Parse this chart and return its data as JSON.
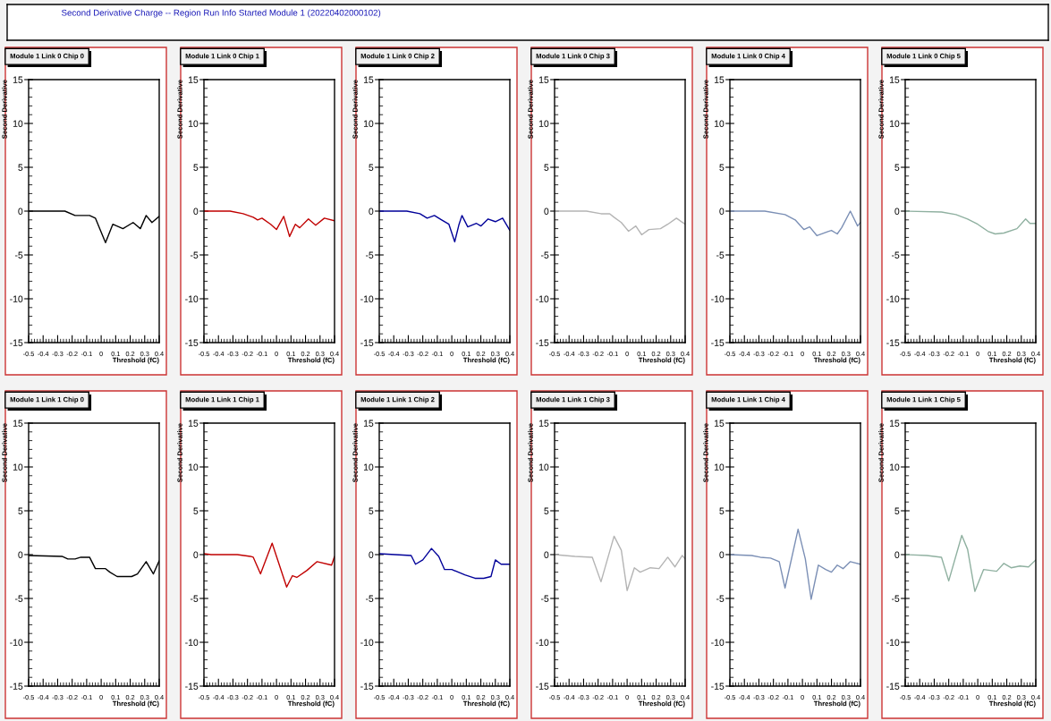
{
  "chart_data": [
    {
      "type": "other",
      "title": "Second Derivative Charge -- Region Run Info Started Module 1 (20220402000102)"
    },
    {
      "type": "line",
      "title": "Module 1 Link 0 Chip 0",
      "xlabel": "Threshold (fC)",
      "ylabel": "Second Derivative",
      "xlim": [
        -0.5,
        0.4
      ],
      "ylim": [
        -15,
        15
      ],
      "xticks": [
        -0.5,
        -0.4,
        -0.3,
        -0.2,
        -0.1,
        0,
        0.1,
        0.2,
        0.3,
        0.4
      ],
      "yticks": [
        -15,
        -10,
        -5,
        0,
        5,
        10,
        15
      ],
      "x": [
        -0.5,
        -0.35,
        -0.25,
        -0.18,
        -0.08,
        -0.04,
        0.03,
        0.08,
        0.15,
        0.22,
        0.27,
        0.31,
        0.35,
        0.4
      ],
      "series": [
        {
          "color": "#000000",
          "values": [
            0,
            0,
            0,
            -0.5,
            -0.5,
            -0.8,
            -3.6,
            -1.5,
            -2.0,
            -1.3,
            -2.0,
            -0.5,
            -1.3,
            -0.6
          ]
        }
      ]
    },
    {
      "type": "line",
      "title": "Module 1 Link 0 Chip 1",
      "xlabel": "Threshold (fC)",
      "ylabel": "Second Derivative",
      "xlim": [
        -0.5,
        0.4
      ],
      "ylim": [
        -15,
        15
      ],
      "xticks": [
        -0.5,
        -0.4,
        -0.3,
        -0.2,
        -0.1,
        0,
        0.1,
        0.2,
        0.3,
        0.4
      ],
      "yticks": [
        -15,
        -10,
        -5,
        0,
        5,
        10,
        15
      ],
      "x": [
        -0.5,
        -0.32,
        -0.23,
        -0.16,
        -0.13,
        -0.1,
        -0.04,
        0.0,
        0.05,
        0.09,
        0.13,
        0.16,
        0.22,
        0.27,
        0.33,
        0.4
      ],
      "series": [
        {
          "color": "#c00000",
          "values": [
            0,
            0,
            -0.3,
            -0.7,
            -1.0,
            -0.8,
            -1.5,
            -2.1,
            -0.6,
            -2.9,
            -1.5,
            -1.9,
            -0.9,
            -1.6,
            -0.8,
            -1.1
          ]
        }
      ]
    },
    {
      "type": "line",
      "title": "Module 1 Link 0 Chip 2",
      "xlabel": "Threshold (fC)",
      "ylabel": "Second Derivative",
      "xlim": [
        -0.5,
        0.4
      ],
      "ylim": [
        -15,
        15
      ],
      "xticks": [
        -0.5,
        -0.4,
        -0.3,
        -0.2,
        -0.1,
        0,
        0.1,
        0.2,
        0.3,
        0.4
      ],
      "yticks": [
        -15,
        -10,
        -5,
        0,
        5,
        10,
        15
      ],
      "x": [
        -0.5,
        -0.31,
        -0.22,
        -0.17,
        -0.12,
        -0.07,
        -0.02,
        0.02,
        0.05,
        0.07,
        0.11,
        0.17,
        0.2,
        0.25,
        0.3,
        0.35,
        0.4
      ],
      "series": [
        {
          "color": "#000099",
          "values": [
            0,
            0,
            -0.3,
            -0.8,
            -0.5,
            -1.0,
            -1.5,
            -3.5,
            -1.5,
            -0.5,
            -1.8,
            -1.4,
            -1.7,
            -0.9,
            -1.2,
            -0.8,
            -2.2
          ]
        }
      ]
    },
    {
      "type": "line",
      "title": "Module 1 Link 0 Chip 3",
      "xlabel": "Threshold (fC)",
      "ylabel": "Second Derivative",
      "xlim": [
        -0.5,
        0.4
      ],
      "ylim": [
        -15,
        15
      ],
      "xticks": [
        -0.5,
        -0.4,
        -0.3,
        -0.2,
        -0.1,
        0,
        0.1,
        0.2,
        0.3,
        0.4
      ],
      "yticks": [
        -15,
        -10,
        -5,
        0,
        5,
        10,
        15
      ],
      "x": [
        -0.5,
        -0.28,
        -0.18,
        -0.12,
        -0.09,
        -0.04,
        0.01,
        0.06,
        0.1,
        0.15,
        0.23,
        0.28,
        0.34,
        0.4
      ],
      "series": [
        {
          "color": "#b4b4b4",
          "values": [
            0,
            0,
            -0.3,
            -0.3,
            -0.7,
            -1.3,
            -2.3,
            -1.7,
            -2.7,
            -2.1,
            -2.0,
            -1.5,
            -0.8,
            -1.5
          ]
        }
      ]
    },
    {
      "type": "line",
      "title": "Module 1 Link 0 Chip 4",
      "xlabel": "Threshold (fC)",
      "ylabel": "Second Derivative",
      "xlim": [
        -0.5,
        0.4
      ],
      "ylim": [
        -15,
        15
      ],
      "xticks": [
        -0.5,
        -0.4,
        -0.3,
        -0.2,
        -0.1,
        0,
        0.1,
        0.2,
        0.3,
        0.4
      ],
      "yticks": [
        -15,
        -10,
        -5,
        0,
        5,
        10,
        15
      ],
      "x": [
        -0.5,
        -0.26,
        -0.12,
        -0.05,
        0.01,
        0.05,
        0.1,
        0.18,
        0.2,
        0.24,
        0.27,
        0.33,
        0.38,
        0.4
      ],
      "series": [
        {
          "color": "#7b8fb5",
          "values": [
            0,
            0,
            -0.4,
            -1.0,
            -2.1,
            -1.8,
            -2.8,
            -2.3,
            -2.2,
            -2.6,
            -1.9,
            0.0,
            -1.7,
            -1.3
          ]
        }
      ]
    },
    {
      "type": "line",
      "title": "Module 1 Link 0 Chip 5",
      "xlabel": "Threshold (fC)",
      "ylabel": "Second Derivative",
      "xlim": [
        -0.5,
        0.4
      ],
      "ylim": [
        -15,
        15
      ],
      "xticks": [
        -0.5,
        -0.4,
        -0.3,
        -0.2,
        -0.1,
        0,
        0.1,
        0.2,
        0.3,
        0.4
      ],
      "yticks": [
        -15,
        -10,
        -5,
        0,
        5,
        10,
        15
      ],
      "x": [
        -0.5,
        -0.25,
        -0.15,
        -0.07,
        0.0,
        0.07,
        0.12,
        0.18,
        0.27,
        0.33,
        0.36,
        0.4
      ],
      "series": [
        {
          "color": "#8fb0a0",
          "values": [
            0,
            -0.1,
            -0.4,
            -0.9,
            -1.5,
            -2.3,
            -2.6,
            -2.5,
            -2.0,
            -0.9,
            -1.4,
            -1.4
          ]
        }
      ]
    },
    {
      "type": "line",
      "title": "Module 1 Link 1 Chip 0",
      "xlabel": "Threshold (fC)",
      "ylabel": "Second Derivative",
      "xlim": [
        -0.5,
        0.4
      ],
      "ylim": [
        -15,
        15
      ],
      "xticks": [
        -0.5,
        -0.4,
        -0.3,
        -0.2,
        -0.1,
        0,
        0.1,
        0.2,
        0.3,
        0.4
      ],
      "yticks": [
        -15,
        -10,
        -5,
        0,
        5,
        10,
        15
      ],
      "x": [
        -0.5,
        -0.27,
        -0.23,
        -0.18,
        -0.14,
        -0.08,
        -0.04,
        0.03,
        0.06,
        0.11,
        0.21,
        0.25,
        0.31,
        0.36,
        0.4
      ],
      "series": [
        {
          "color": "#000000",
          "values": [
            -0.1,
            -0.2,
            -0.5,
            -0.5,
            -0.3,
            -0.3,
            -1.6,
            -1.6,
            -2.0,
            -2.5,
            -2.5,
            -2.2,
            -0.8,
            -2.2,
            -0.7
          ]
        }
      ]
    },
    {
      "type": "line",
      "title": "Module 1 Link 1 Chip 1",
      "xlabel": "Threshold (fC)",
      "ylabel": "Second Derivative",
      "xlim": [
        -0.5,
        0.4
      ],
      "ylim": [
        -15,
        15
      ],
      "xticks": [
        -0.5,
        -0.4,
        -0.3,
        -0.2,
        -0.1,
        0,
        0.1,
        0.2,
        0.3,
        0.4
      ],
      "yticks": [
        -15,
        -10,
        -5,
        0,
        5,
        10,
        15
      ],
      "x": [
        -0.5,
        -0.45,
        -0.27,
        -0.18,
        -0.16,
        -0.11,
        -0.03,
        0.07,
        0.11,
        0.14,
        0.21,
        0.28,
        0.38,
        0.4
      ],
      "series": [
        {
          "color": "#c00000",
          "values": [
            0.1,
            0,
            0,
            -0.2,
            -0.3,
            -2.2,
            1.3,
            -3.7,
            -2.4,
            -2.6,
            -1.8,
            -0.8,
            -1.2,
            -0.2
          ]
        }
      ]
    },
    {
      "type": "line",
      "title": "Module 1 Link 1 Chip 2",
      "xlabel": "Threshold (fC)",
      "ylabel": "Second Derivative",
      "xlim": [
        -0.5,
        0.4
      ],
      "ylim": [
        -15,
        15
      ],
      "xticks": [
        -0.5,
        -0.4,
        -0.3,
        -0.2,
        -0.1,
        0,
        0.1,
        0.2,
        0.3,
        0.4
      ],
      "yticks": [
        -15,
        -10,
        -5,
        0,
        5,
        10,
        15
      ],
      "x": [
        -0.5,
        -0.39,
        -0.28,
        -0.25,
        -0.2,
        -0.14,
        -0.09,
        -0.05,
        0.0,
        0.09,
        0.16,
        0.22,
        0.27,
        0.3,
        0.34,
        0.4
      ],
      "series": [
        {
          "color": "#000099",
          "values": [
            0.1,
            0,
            -0.1,
            -1.1,
            -0.6,
            0.7,
            -0.2,
            -1.7,
            -1.7,
            -2.3,
            -2.7,
            -2.7,
            -2.5,
            -0.6,
            -1.1,
            -1.1
          ]
        }
      ]
    },
    {
      "type": "line",
      "title": "Module 1 Link 1 Chip 3",
      "xlabel": "Threshold (fC)",
      "ylabel": "Second Derivative",
      "xlim": [
        -0.5,
        0.4
      ],
      "ylim": [
        -15,
        15
      ],
      "xticks": [
        -0.5,
        -0.4,
        -0.3,
        -0.2,
        -0.1,
        0,
        0.1,
        0.2,
        0.3,
        0.4
      ],
      "yticks": [
        -15,
        -10,
        -5,
        0,
        5,
        10,
        15
      ],
      "x": [
        -0.5,
        -0.36,
        -0.24,
        -0.18,
        -0.09,
        -0.04,
        0.0,
        0.05,
        0.09,
        0.16,
        0.22,
        0.28,
        0.33,
        0.38,
        0.4
      ],
      "series": [
        {
          "color": "#b4b4b4",
          "values": [
            0,
            -0.2,
            -0.3,
            -3.1,
            2.1,
            0.5,
            -4.1,
            -1.5,
            -2.0,
            -1.5,
            -1.6,
            -0.3,
            -1.4,
            -0.1,
            -0.5
          ]
        }
      ]
    },
    {
      "type": "line",
      "title": "Module 1 Link 1 Chip 4",
      "xlabel": "Threshold (fC)",
      "ylabel": "Second Derivative",
      "xlim": [
        -0.5,
        0.4
      ],
      "ylim": [
        -15,
        15
      ],
      "xticks": [
        -0.5,
        -0.4,
        -0.3,
        -0.2,
        -0.1,
        0,
        0.1,
        0.2,
        0.3,
        0.4
      ],
      "yticks": [
        -15,
        -10,
        -5,
        0,
        5,
        10,
        15
      ],
      "x": [
        -0.5,
        -0.35,
        -0.29,
        -0.22,
        -0.16,
        -0.12,
        -0.03,
        0.02,
        0.06,
        0.11,
        0.16,
        0.2,
        0.24,
        0.28,
        0.33,
        0.4
      ],
      "series": [
        {
          "color": "#7b8fb5",
          "values": [
            0,
            -0.1,
            -0.3,
            -0.4,
            -0.8,
            -3.8,
            2.9,
            -0.5,
            -5.1,
            -1.2,
            -1.7,
            -2.0,
            -1.2,
            -1.6,
            -0.8,
            -1.1
          ]
        }
      ]
    },
    {
      "type": "line",
      "title": "Module 1 Link 1 Chip 5",
      "xlabel": "Threshold (fC)",
      "ylabel": "Second Derivative",
      "xlim": [
        -0.5,
        0.4
      ],
      "ylim": [
        -15,
        15
      ],
      "xticks": [
        -0.5,
        -0.4,
        -0.3,
        -0.2,
        -0.1,
        0,
        0.1,
        0.2,
        0.3,
        0.4
      ],
      "yticks": [
        -15,
        -10,
        -5,
        0,
        5,
        10,
        15
      ],
      "x": [
        -0.5,
        -0.35,
        -0.25,
        -0.2,
        -0.11,
        -0.07,
        -0.02,
        0.04,
        0.13,
        0.18,
        0.23,
        0.29,
        0.35,
        0.4
      ],
      "series": [
        {
          "color": "#8fb0a0",
          "values": [
            0,
            -0.1,
            -0.3,
            -3.0,
            2.2,
            0.6,
            -4.2,
            -1.7,
            -1.9,
            -1.0,
            -1.5,
            -1.3,
            -1.4,
            -0.6
          ]
        }
      ]
    }
  ]
}
